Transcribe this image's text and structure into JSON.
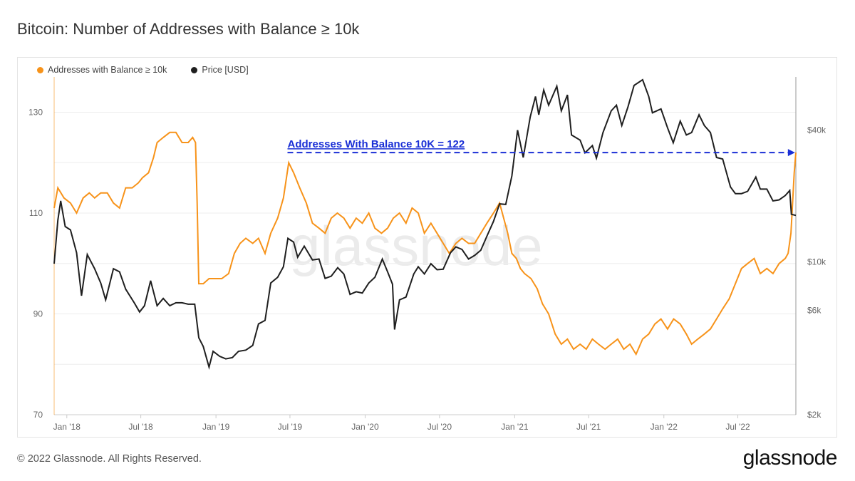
{
  "page": {
    "title": "Bitcoin: Number of Addresses with Balance ≥ 10k",
    "footer": "© 2022 Glassnode. All Rights Reserved.",
    "brand": "glassnode",
    "watermark": "glassnode"
  },
  "chart_data": {
    "type": "line",
    "title": "Bitcoin: Number of Addresses with Balance ≥ 10k",
    "x_tick_labels": [
      "Jan '18",
      "Jul '18",
      "Jan '19",
      "Jul '19",
      "Jan '20",
      "Jul '20",
      "Jan '21",
      "Jul '21",
      "Jan '22",
      "Jul '22"
    ],
    "x_range": [
      "2017-12-01",
      "2022-11-20"
    ],
    "left_axis": {
      "ticks": [
        "70",
        "90",
        "110",
        "130"
      ],
      "range": [
        70,
        137
      ]
    },
    "right_axis": {
      "ticks": [
        "$2k",
        "$6k",
        "$10k",
        "$40k"
      ],
      "scale": "log",
      "range": [
        2000,
        70000
      ]
    },
    "grid": true,
    "legend_position": "top-left",
    "annotation": {
      "text": "Addresses With Balance 10K = 122",
      "value": 122,
      "from": "2019-06-25",
      "to": "2022-11-18",
      "color": "#1a2fd6"
    },
    "series": [
      {
        "name": "Addresses with Balance ≥ 10k",
        "axis": "left",
        "color": "#f7931a",
        "points": [
          [
            "2017-12-01",
            111
          ],
          [
            "2017-12-10",
            115
          ],
          [
            "2017-12-25",
            113
          ],
          [
            "2018-01-10",
            112
          ],
          [
            "2018-01-25",
            110
          ],
          [
            "2018-02-10",
            113
          ],
          [
            "2018-02-25",
            114
          ],
          [
            "2018-03-10",
            113
          ],
          [
            "2018-03-25",
            114
          ],
          [
            "2018-04-10",
            114
          ],
          [
            "2018-04-25",
            112
          ],
          [
            "2018-05-10",
            111
          ],
          [
            "2018-05-25",
            115
          ],
          [
            "2018-06-10",
            115
          ],
          [
            "2018-06-25",
            116
          ],
          [
            "2018-07-05",
            117
          ],
          [
            "2018-07-20",
            118
          ],
          [
            "2018-08-01",
            121
          ],
          [
            "2018-08-10",
            124
          ],
          [
            "2018-08-25",
            125
          ],
          [
            "2018-09-10",
            126
          ],
          [
            "2018-09-25",
            126
          ],
          [
            "2018-10-10",
            124
          ],
          [
            "2018-10-25",
            124
          ],
          [
            "2018-11-05",
            125
          ],
          [
            "2018-11-12",
            124
          ],
          [
            "2018-11-16",
            112
          ],
          [
            "2018-11-20",
            96
          ],
          [
            "2018-12-01",
            96
          ],
          [
            "2018-12-15",
            97
          ],
          [
            "2019-01-01",
            97
          ],
          [
            "2019-01-15",
            97
          ],
          [
            "2019-02-01",
            98
          ],
          [
            "2019-02-15",
            102
          ],
          [
            "2019-03-01",
            104
          ],
          [
            "2019-03-15",
            105
          ],
          [
            "2019-04-01",
            104
          ],
          [
            "2019-04-15",
            105
          ],
          [
            "2019-05-01",
            102
          ],
          [
            "2019-05-15",
            106
          ],
          [
            "2019-06-01",
            109
          ],
          [
            "2019-06-15",
            113
          ],
          [
            "2019-06-28",
            120
          ],
          [
            "2019-07-10",
            118
          ],
          [
            "2019-07-25",
            115
          ],
          [
            "2019-08-10",
            112
          ],
          [
            "2019-08-25",
            108
          ],
          [
            "2019-09-10",
            107
          ],
          [
            "2019-09-25",
            106
          ],
          [
            "2019-10-10",
            109
          ],
          [
            "2019-10-25",
            110
          ],
          [
            "2019-11-10",
            109
          ],
          [
            "2019-11-25",
            107
          ],
          [
            "2019-12-10",
            109
          ],
          [
            "2019-12-25",
            108
          ],
          [
            "2020-01-10",
            110
          ],
          [
            "2020-01-25",
            107
          ],
          [
            "2020-02-10",
            106
          ],
          [
            "2020-02-25",
            107
          ],
          [
            "2020-03-10",
            109
          ],
          [
            "2020-03-25",
            110
          ],
          [
            "2020-04-10",
            108
          ],
          [
            "2020-04-25",
            111
          ],
          [
            "2020-05-10",
            110
          ],
          [
            "2020-05-25",
            106
          ],
          [
            "2020-06-10",
            108
          ],
          [
            "2020-06-25",
            106
          ],
          [
            "2020-07-10",
            104
          ],
          [
            "2020-07-25",
            102
          ],
          [
            "2020-08-10",
            104
          ],
          [
            "2020-08-25",
            105
          ],
          [
            "2020-09-10",
            104
          ],
          [
            "2020-09-25",
            104
          ],
          [
            "2020-10-10",
            106
          ],
          [
            "2020-10-25",
            108
          ],
          [
            "2020-11-10",
            110
          ],
          [
            "2020-11-25",
            112
          ],
          [
            "2020-12-05",
            109
          ],
          [
            "2020-12-15",
            106
          ],
          [
            "2020-12-25",
            102
          ],
          [
            "2021-01-05",
            101
          ],
          [
            "2021-01-15",
            99
          ],
          [
            "2021-01-25",
            98
          ],
          [
            "2021-02-10",
            97
          ],
          [
            "2021-02-25",
            95
          ],
          [
            "2021-03-10",
            92
          ],
          [
            "2021-03-25",
            90
          ],
          [
            "2021-04-10",
            86
          ],
          [
            "2021-04-25",
            84
          ],
          [
            "2021-05-10",
            85
          ],
          [
            "2021-05-25",
            83
          ],
          [
            "2021-06-10",
            84
          ],
          [
            "2021-06-25",
            83
          ],
          [
            "2021-07-10",
            85
          ],
          [
            "2021-07-25",
            84
          ],
          [
            "2021-08-10",
            83
          ],
          [
            "2021-08-25",
            84
          ],
          [
            "2021-09-10",
            85
          ],
          [
            "2021-09-25",
            83
          ],
          [
            "2021-10-10",
            84
          ],
          [
            "2021-10-25",
            82
          ],
          [
            "2021-11-10",
            85
          ],
          [
            "2021-11-25",
            86
          ],
          [
            "2021-12-10",
            88
          ],
          [
            "2021-12-25",
            89
          ],
          [
            "2022-01-10",
            87
          ],
          [
            "2022-01-25",
            89
          ],
          [
            "2022-02-10",
            88
          ],
          [
            "2022-02-25",
            86
          ],
          [
            "2022-03-10",
            84
          ],
          [
            "2022-03-25",
            85
          ],
          [
            "2022-04-10",
            86
          ],
          [
            "2022-04-25",
            87
          ],
          [
            "2022-05-10",
            89
          ],
          [
            "2022-05-25",
            91
          ],
          [
            "2022-06-10",
            93
          ],
          [
            "2022-06-25",
            96
          ],
          [
            "2022-07-10",
            99
          ],
          [
            "2022-07-25",
            100
          ],
          [
            "2022-08-10",
            101
          ],
          [
            "2022-08-25",
            98
          ],
          [
            "2022-09-10",
            99
          ],
          [
            "2022-09-25",
            98
          ],
          [
            "2022-10-10",
            100
          ],
          [
            "2022-10-25",
            101
          ],
          [
            "2022-11-01",
            102
          ],
          [
            "2022-11-08",
            106
          ],
          [
            "2022-11-12",
            112
          ],
          [
            "2022-11-16",
            118
          ],
          [
            "2022-11-20",
            122
          ]
        ]
      },
      {
        "name": "Price [USD]",
        "axis": "right",
        "color": "#1f1f1f",
        "points": [
          [
            "2017-12-01",
            9800
          ],
          [
            "2017-12-10",
            15500
          ],
          [
            "2017-12-17",
            19000
          ],
          [
            "2017-12-28",
            14500
          ],
          [
            "2018-01-10",
            14000
          ],
          [
            "2018-01-25",
            11000
          ],
          [
            "2018-02-06",
            7000
          ],
          [
            "2018-02-20",
            10800
          ],
          [
            "2018-03-10",
            9300
          ],
          [
            "2018-03-25",
            8000
          ],
          [
            "2018-04-06",
            6700
          ],
          [
            "2018-04-25",
            9300
          ],
          [
            "2018-05-10",
            9000
          ],
          [
            "2018-05-25",
            7500
          ],
          [
            "2018-06-15",
            6500
          ],
          [
            "2018-06-28",
            5900
          ],
          [
            "2018-07-10",
            6300
          ],
          [
            "2018-07-25",
            8200
          ],
          [
            "2018-08-10",
            6300
          ],
          [
            "2018-08-25",
            6800
          ],
          [
            "2018-09-10",
            6300
          ],
          [
            "2018-09-25",
            6500
          ],
          [
            "2018-10-10",
            6500
          ],
          [
            "2018-10-25",
            6400
          ],
          [
            "2018-11-10",
            6400
          ],
          [
            "2018-11-20",
            4500
          ],
          [
            "2018-12-01",
            4100
          ],
          [
            "2018-12-15",
            3300
          ],
          [
            "2018-12-25",
            3900
          ],
          [
            "2019-01-10",
            3700
          ],
          [
            "2019-01-25",
            3600
          ],
          [
            "2019-02-10",
            3650
          ],
          [
            "2019-02-25",
            3900
          ],
          [
            "2019-03-15",
            3950
          ],
          [
            "2019-04-01",
            4150
          ],
          [
            "2019-04-15",
            5200
          ],
          [
            "2019-05-01",
            5400
          ],
          [
            "2019-05-15",
            8000
          ],
          [
            "2019-06-01",
            8500
          ],
          [
            "2019-06-15",
            9500
          ],
          [
            "2019-06-26",
            12800
          ],
          [
            "2019-07-10",
            12300
          ],
          [
            "2019-07-20",
            10500
          ],
          [
            "2019-08-05",
            11800
          ],
          [
            "2019-08-25",
            10200
          ],
          [
            "2019-09-10",
            10300
          ],
          [
            "2019-09-25",
            8400
          ],
          [
            "2019-10-10",
            8600
          ],
          [
            "2019-10-26",
            9400
          ],
          [
            "2019-11-10",
            8800
          ],
          [
            "2019-11-25",
            7100
          ],
          [
            "2019-12-10",
            7300
          ],
          [
            "2019-12-25",
            7200
          ],
          [
            "2020-01-10",
            8000
          ],
          [
            "2020-01-25",
            8500
          ],
          [
            "2020-02-12",
            10300
          ],
          [
            "2020-02-25",
            9000
          ],
          [
            "2020-03-08",
            7900
          ],
          [
            "2020-03-13",
            4900
          ],
          [
            "2020-03-25",
            6700
          ],
          [
            "2020-04-10",
            6900
          ],
          [
            "2020-04-29",
            8800
          ],
          [
            "2020-05-10",
            9500
          ],
          [
            "2020-05-25",
            8800
          ],
          [
            "2020-06-10",
            9800
          ],
          [
            "2020-06-25",
            9200
          ],
          [
            "2020-07-10",
            9250
          ],
          [
            "2020-07-28",
            11000
          ],
          [
            "2020-08-10",
            11700
          ],
          [
            "2020-08-25",
            11400
          ],
          [
            "2020-09-10",
            10300
          ],
          [
            "2020-09-25",
            10700
          ],
          [
            "2020-10-10",
            11300
          ],
          [
            "2020-10-25",
            13100
          ],
          [
            "2020-11-10",
            15300
          ],
          [
            "2020-11-25",
            18400
          ],
          [
            "2020-12-10",
            18300
          ],
          [
            "2020-12-25",
            24700
          ],
          [
            "2021-01-08",
            40000
          ],
          [
            "2021-01-22",
            30000
          ],
          [
            "2021-02-08",
            46000
          ],
          [
            "2021-02-21",
            57000
          ],
          [
            "2021-03-01",
            47000
          ],
          [
            "2021-03-13",
            61000
          ],
          [
            "2021-03-25",
            52000
          ],
          [
            "2021-04-14",
            63500
          ],
          [
            "2021-04-25",
            49000
          ],
          [
            "2021-05-10",
            58000
          ],
          [
            "2021-05-20",
            38000
          ],
          [
            "2021-06-10",
            36000
          ],
          [
            "2021-06-22",
            31500
          ],
          [
            "2021-07-10",
            34000
          ],
          [
            "2021-07-20",
            29800
          ],
          [
            "2021-08-05",
            39000
          ],
          [
            "2021-08-25",
            49000
          ],
          [
            "2021-09-07",
            52000
          ],
          [
            "2021-09-20",
            42000
          ],
          [
            "2021-10-05",
            51000
          ],
          [
            "2021-10-20",
            64000
          ],
          [
            "2021-11-10",
            68000
          ],
          [
            "2021-11-25",
            57000
          ],
          [
            "2021-12-04",
            48000
          ],
          [
            "2021-12-25",
            50000
          ],
          [
            "2022-01-10",
            41000
          ],
          [
            "2022-01-24",
            35000
          ],
          [
            "2022-02-10",
            44000
          ],
          [
            "2022-02-25",
            38000
          ],
          [
            "2022-03-10",
            39000
          ],
          [
            "2022-03-28",
            47000
          ],
          [
            "2022-04-10",
            42000
          ],
          [
            "2022-04-25",
            39000
          ],
          [
            "2022-05-10",
            30000
          ],
          [
            "2022-05-25",
            29500
          ],
          [
            "2022-06-13",
            22000
          ],
          [
            "2022-06-25",
            20500
          ],
          [
            "2022-07-10",
            20500
          ],
          [
            "2022-07-25",
            21000
          ],
          [
            "2022-08-14",
            24400
          ],
          [
            "2022-08-25",
            21500
          ],
          [
            "2022-09-10",
            21500
          ],
          [
            "2022-09-25",
            19000
          ],
          [
            "2022-10-10",
            19200
          ],
          [
            "2022-10-25",
            20100
          ],
          [
            "2022-11-05",
            21200
          ],
          [
            "2022-11-09",
            16500
          ],
          [
            "2022-11-20",
            16300
          ]
        ]
      }
    ]
  }
}
